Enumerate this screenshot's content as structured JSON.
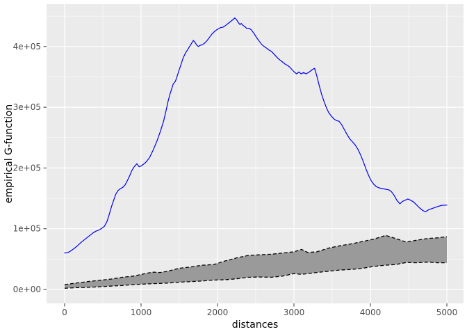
{
  "figure": {
    "background": "#FFFFFF"
  },
  "chart_data": {
    "type": "line",
    "title": "",
    "xlabel": "distances",
    "ylabel": "empirical G-function",
    "x_ticks": [
      {
        "value": 0,
        "label": "0"
      },
      {
        "value": 1000,
        "label": "1000"
      },
      {
        "value": 2000,
        "label": "2000"
      },
      {
        "value": 3000,
        "label": "3000"
      },
      {
        "value": 4000,
        "label": "4000"
      },
      {
        "value": 5000,
        "label": "5000"
      }
    ],
    "y_ticks": [
      {
        "value": 0,
        "label": "0e+00"
      },
      {
        "value": 100000,
        "label": "1e+05"
      },
      {
        "value": 200000,
        "label": "2e+05"
      },
      {
        "value": 300000,
        "label": "3e+05"
      },
      {
        "value": 400000,
        "label": "4e+05"
      }
    ],
    "x_minor_ticks": [
      500,
      1500,
      2500,
      3500,
      4500
    ],
    "y_minor_ticks": [
      50000,
      150000,
      250000,
      350000,
      450000
    ],
    "xlim": [
      -236,
      5218
    ],
    "ylim": [
      -22900,
      469650
    ],
    "grid": "on",
    "legend_position": "none",
    "panel_background": "#EBEBEB",
    "grid_major_color": "#FFFFFF",
    "grid_minor_color": "#FFFFFF",
    "axis_text_color": "#4D4D4D",
    "axis_title_color": "#000000",
    "tick_mark_color": "#333333",
    "series": [
      {
        "name": "empirical G-function line",
        "type": "line",
        "color": "#0000F0",
        "width": 1.2,
        "points": [
          [
            0,
            60000
          ],
          [
            45,
            61000
          ],
          [
            75,
            63000
          ],
          [
            120,
            67000
          ],
          [
            160,
            71000
          ],
          [
            210,
            77000
          ],
          [
            250,
            81000
          ],
          [
            290,
            85000
          ],
          [
            330,
            89000
          ],
          [
            370,
            93000
          ],
          [
            410,
            96000
          ],
          [
            450,
            98000
          ],
          [
            490,
            101000
          ],
          [
            520,
            104000
          ],
          [
            555,
            112000
          ],
          [
            585,
            124000
          ],
          [
            615,
            137000
          ],
          [
            645,
            148000
          ],
          [
            670,
            157000
          ],
          [
            700,
            163000
          ],
          [
            730,
            166000
          ],
          [
            760,
            168000
          ],
          [
            790,
            172000
          ],
          [
            820,
            179000
          ],
          [
            850,
            187000
          ],
          [
            880,
            196000
          ],
          [
            910,
            202000
          ],
          [
            945,
            207000
          ],
          [
            975,
            202000
          ],
          [
            1010,
            204000
          ],
          [
            1060,
            209000
          ],
          [
            1110,
            217000
          ],
          [
            1160,
            230000
          ],
          [
            1210,
            245000
          ],
          [
            1255,
            261000
          ],
          [
            1295,
            277000
          ],
          [
            1325,
            293000
          ],
          [
            1350,
            308000
          ],
          [
            1375,
            320000
          ],
          [
            1400,
            330000
          ],
          [
            1420,
            338000
          ],
          [
            1450,
            343000
          ],
          [
            1475,
            352000
          ],
          [
            1500,
            362000
          ],
          [
            1525,
            371000
          ],
          [
            1550,
            381000
          ],
          [
            1580,
            389000
          ],
          [
            1610,
            395000
          ],
          [
            1640,
            401000
          ],
          [
            1665,
            406000
          ],
          [
            1685,
            410000
          ],
          [
            1705,
            407000
          ],
          [
            1730,
            402000
          ],
          [
            1750,
            400000
          ],
          [
            1775,
            402000
          ],
          [
            1805,
            403000
          ],
          [
            1835,
            406000
          ],
          [
            1865,
            410000
          ],
          [
            1895,
            415000
          ],
          [
            1925,
            420000
          ],
          [
            1955,
            424000
          ],
          [
            1985,
            427000
          ],
          [
            2010,
            429000
          ],
          [
            2040,
            431000
          ],
          [
            2075,
            432000
          ],
          [
            2110,
            435000
          ],
          [
            2140,
            438000
          ],
          [
            2170,
            441000
          ],
          [
            2200,
            444000
          ],
          [
            2225,
            447000
          ],
          [
            2250,
            444000
          ],
          [
            2275,
            439000
          ],
          [
            2295,
            436000
          ],
          [
            2310,
            438000
          ],
          [
            2330,
            435000
          ],
          [
            2355,
            433000
          ],
          [
            2380,
            430000
          ],
          [
            2415,
            430000
          ],
          [
            2445,
            427000
          ],
          [
            2480,
            421000
          ],
          [
            2515,
            414000
          ],
          [
            2550,
            408000
          ],
          [
            2580,
            403000
          ],
          [
            2610,
            400000
          ],
          [
            2645,
            397000
          ],
          [
            2675,
            394000
          ],
          [
            2705,
            392000
          ],
          [
            2735,
            388000
          ],
          [
            2765,
            384000
          ],
          [
            2795,
            380000
          ],
          [
            2825,
            377000
          ],
          [
            2855,
            374000
          ],
          [
            2885,
            371000
          ],
          [
            2915,
            369000
          ],
          [
            2945,
            366000
          ],
          [
            2975,
            362000
          ],
          [
            3005,
            358000
          ],
          [
            3035,
            355000
          ],
          [
            3065,
            358000
          ],
          [
            3095,
            355000
          ],
          [
            3125,
            357000
          ],
          [
            3160,
            355000
          ],
          [
            3200,
            358000
          ],
          [
            3240,
            362000
          ],
          [
            3270,
            364000
          ],
          [
            3300,
            351000
          ],
          [
            3330,
            336000
          ],
          [
            3360,
            322000
          ],
          [
            3395,
            309000
          ],
          [
            3425,
            299000
          ],
          [
            3455,
            291000
          ],
          [
            3485,
            286000
          ],
          [
            3520,
            281000
          ],
          [
            3555,
            278000
          ],
          [
            3590,
            277000
          ],
          [
            3625,
            271000
          ],
          [
            3660,
            263000
          ],
          [
            3695,
            255000
          ],
          [
            3730,
            248000
          ],
          [
            3765,
            243000
          ],
          [
            3800,
            238000
          ],
          [
            3835,
            231000
          ],
          [
            3870,
            222000
          ],
          [
            3905,
            211000
          ],
          [
            3940,
            199000
          ],
          [
            3975,
            188000
          ],
          [
            4010,
            179000
          ],
          [
            4045,
            173000
          ],
          [
            4080,
            169000
          ],
          [
            4120,
            167000
          ],
          [
            4160,
            166000
          ],
          [
            4200,
            165000
          ],
          [
            4240,
            164000
          ],
          [
            4275,
            161000
          ],
          [
            4310,
            155000
          ],
          [
            4345,
            147000
          ],
          [
            4385,
            141000
          ],
          [
            4420,
            145000
          ],
          [
            4455,
            147000
          ],
          [
            4490,
            149000
          ],
          [
            4525,
            147000
          ],
          [
            4565,
            144000
          ],
          [
            4605,
            139000
          ],
          [
            4645,
            134000
          ],
          [
            4685,
            130000
          ],
          [
            4720,
            128000
          ],
          [
            4760,
            131000
          ],
          [
            4800,
            133000
          ],
          [
            4845,
            135000
          ],
          [
            4890,
            137000
          ],
          [
            4935,
            138500
          ],
          [
            5000,
            139000
          ]
        ]
      },
      {
        "name": "simulation envelope ribbon",
        "type": "ribbon",
        "fill": "#9A9A9A",
        "border_color": "#000000",
        "border_width": 1.3,
        "border_dash": "5 3",
        "points_x_lo_hi": [
          [
            0,
            2000,
            8000
          ],
          [
            150,
            3000,
            10500
          ],
          [
            300,
            3500,
            13000
          ],
          [
            450,
            4500,
            15000
          ],
          [
            600,
            5500,
            17000
          ],
          [
            750,
            6500,
            20000
          ],
          [
            900,
            8000,
            22000
          ],
          [
            1050,
            9000,
            26000
          ],
          [
            1150,
            9500,
            28500
          ],
          [
            1250,
            10000,
            28000
          ],
          [
            1350,
            10500,
            30000
          ],
          [
            1500,
            12000,
            35000
          ],
          [
            1650,
            13000,
            37000
          ],
          [
            1800,
            14000,
            40000
          ],
          [
            1950,
            15500,
            41000
          ],
          [
            2100,
            16000,
            47000
          ],
          [
            2250,
            17500,
            52000
          ],
          [
            2400,
            20000,
            56000
          ],
          [
            2550,
            20500,
            57000
          ],
          [
            2700,
            20000,
            58000
          ],
          [
            2850,
            22000,
            60000
          ],
          [
            3000,
            26000,
            62000
          ],
          [
            3100,
            25000,
            66000
          ],
          [
            3180,
            26000,
            61000
          ],
          [
            3300,
            28000,
            62000
          ],
          [
            3450,
            30000,
            68000
          ],
          [
            3600,
            32000,
            72000
          ],
          [
            3750,
            33000,
            75000
          ],
          [
            3900,
            35000,
            79000
          ],
          [
            4050,
            38000,
            83000
          ],
          [
            4200,
            40000,
            89000
          ],
          [
            4330,
            41000,
            84000
          ],
          [
            4470,
            44500,
            78000
          ],
          [
            4600,
            44000,
            81000
          ],
          [
            4750,
            45000,
            84000
          ],
          [
            4880,
            44000,
            85000
          ],
          [
            5000,
            44000,
            87000
          ]
        ]
      }
    ]
  }
}
